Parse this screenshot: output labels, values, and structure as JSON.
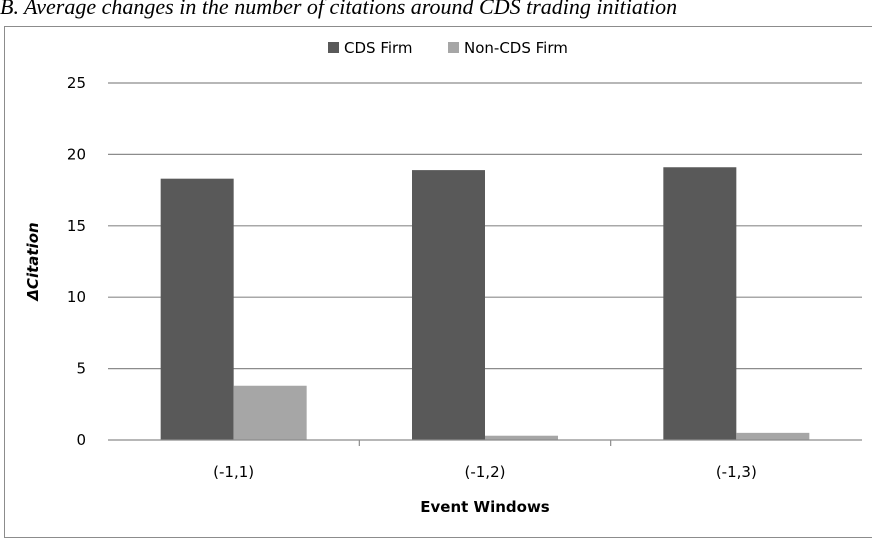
{
  "caption": "B. Average changes in the number of citations around CDS trading initiation",
  "chart_data": {
    "type": "bar",
    "title": "",
    "xlabel": "Event Windows",
    "ylabel": "ΔCitation",
    "ylim": [
      0,
      25
    ],
    "yticks": [
      0,
      5,
      10,
      15,
      20,
      25
    ],
    "grid": true,
    "legend_position": "top-center",
    "categories": [
      "(-1,1)",
      "(-1,2)",
      "(-1,3)"
    ],
    "series": [
      {
        "name": "CDS Firm",
        "color": "#595959",
        "values": [
          18.3,
          18.9,
          19.1
        ]
      },
      {
        "name": "Non-CDS Firm",
        "color": "#a6a6a6",
        "values": [
          3.8,
          0.3,
          0.5
        ]
      }
    ]
  }
}
